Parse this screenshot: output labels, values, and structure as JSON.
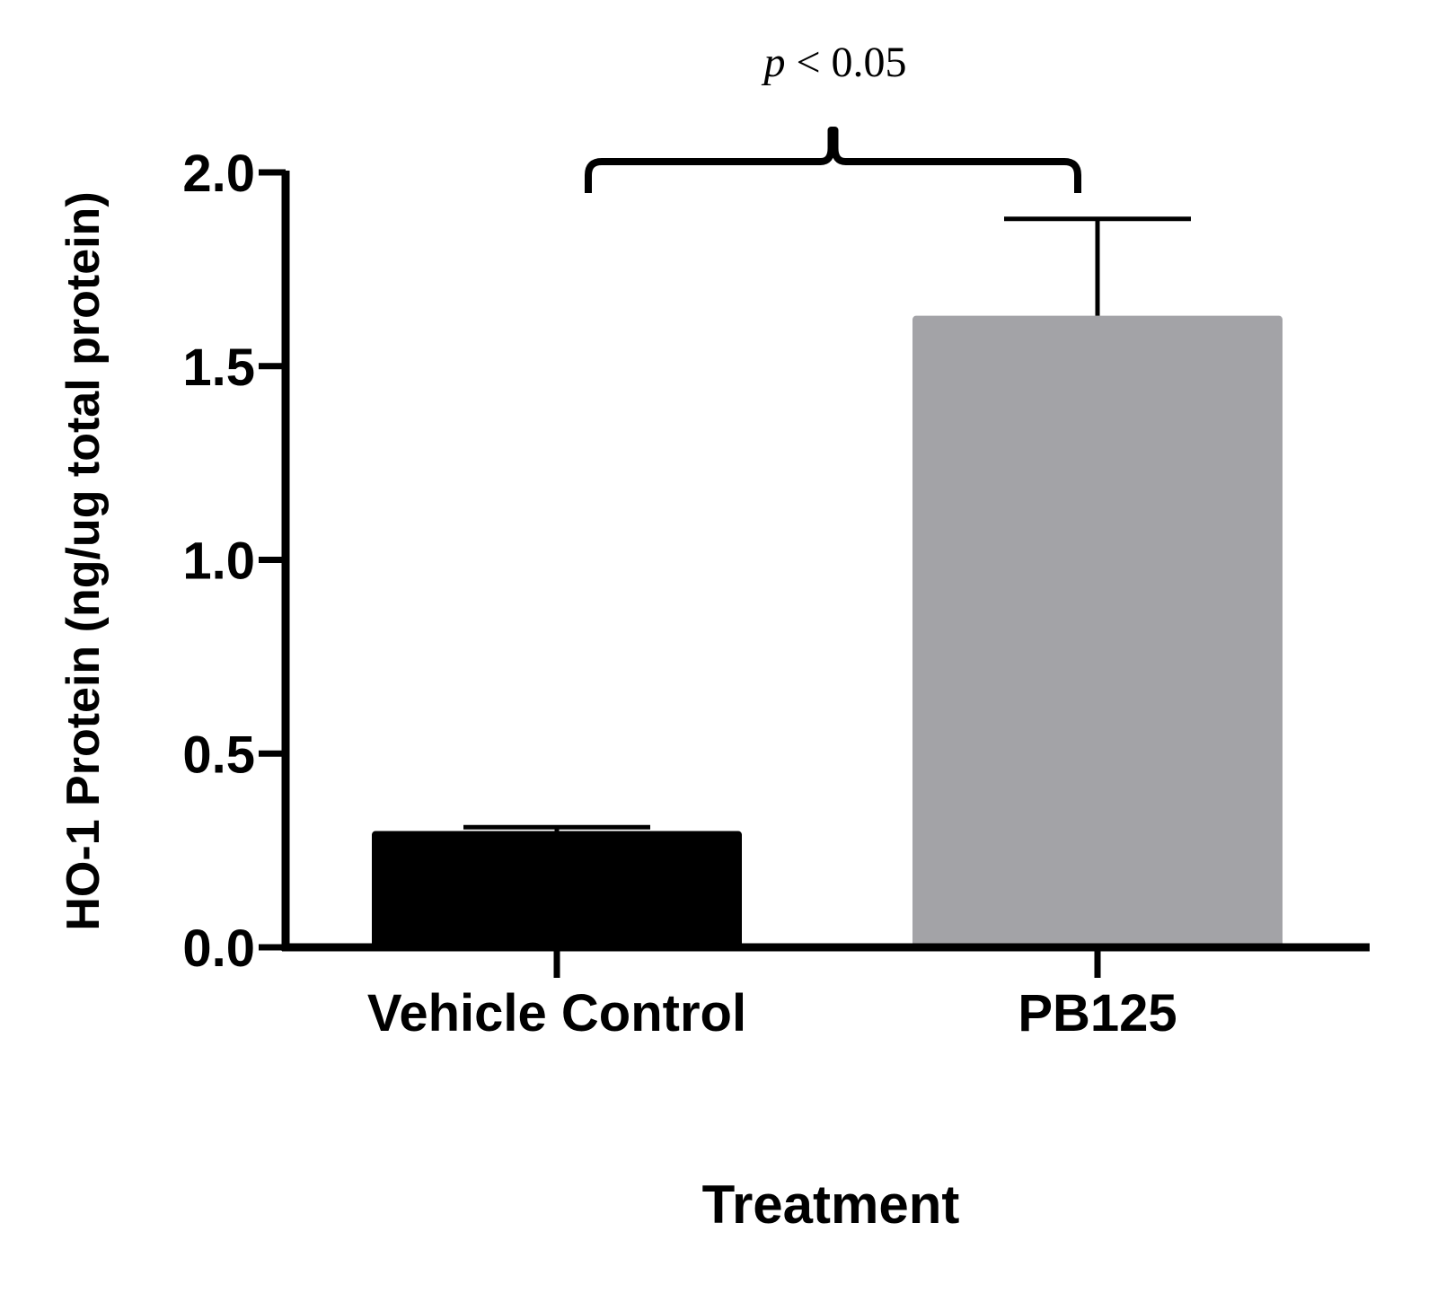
{
  "chart_data": {
    "type": "bar",
    "categories": [
      "Vehicle Control",
      "PB125"
    ],
    "values": [
      0.3,
      1.63
    ],
    "error_upper": [
      0.31,
      1.88
    ],
    "bar_colors": [
      "#000000",
      "#a3a3a7"
    ],
    "ylabel": "HO-1 Protein (ng/ug total protein)",
    "xlabel": "Treatment",
    "ylim": [
      0,
      2.0
    ],
    "yticks": [
      0.0,
      0.5,
      1.0,
      1.5,
      2.0
    ],
    "ytick_labels": [
      "0.0",
      "0.5",
      "1.0",
      "1.5",
      "2.0"
    ],
    "annotation": {
      "p_symbol": "p",
      "p_rest": " < 0.05",
      "between": [
        "Vehicle Control",
        "PB125"
      ]
    }
  }
}
